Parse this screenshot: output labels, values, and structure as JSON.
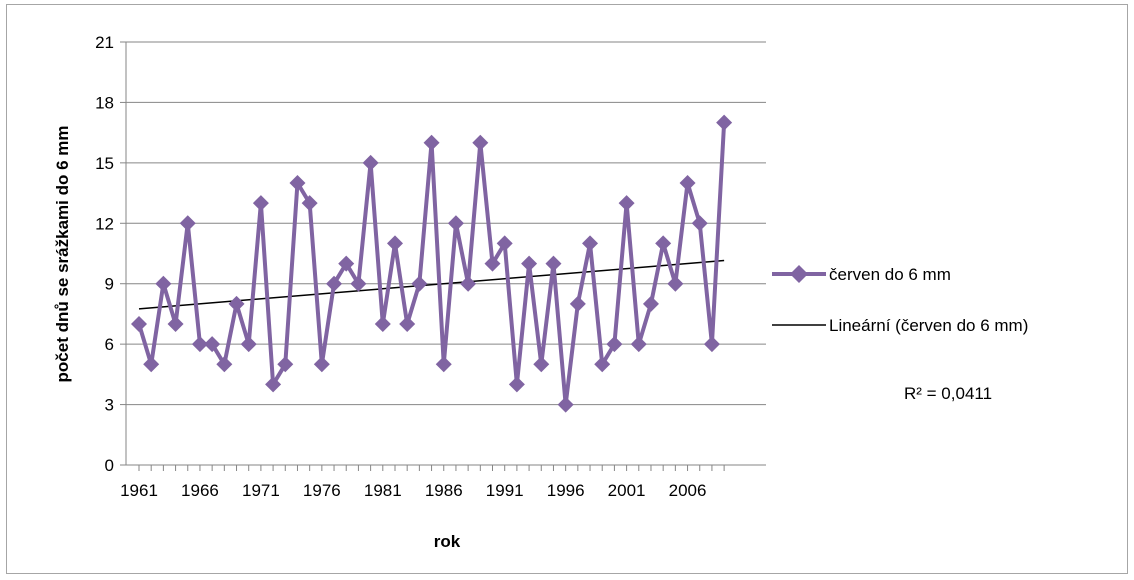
{
  "chart_data": {
    "type": "line",
    "title": "",
    "xlabel": "rok",
    "ylabel": "počet dnů se srážkami do 6 mm",
    "ylim": [
      0,
      21
    ],
    "yticks": [
      "0",
      "3",
      "6",
      "9",
      "12",
      "15",
      "18",
      "21"
    ],
    "xticks": [
      "1961",
      "1966",
      "1971",
      "1976",
      "1981",
      "1986",
      "1991",
      "1996",
      "2001",
      "2006"
    ],
    "grid": "horizontal",
    "legend_position": "right",
    "x": [
      1961,
      1962,
      1963,
      1964,
      1965,
      1966,
      1967,
      1968,
      1969,
      1970,
      1971,
      1972,
      1973,
      1974,
      1975,
      1976,
      1977,
      1978,
      1979,
      1980,
      1981,
      1982,
      1983,
      1984,
      1985,
      1986,
      1987,
      1988,
      1989,
      1990,
      1991,
      1992,
      1993,
      1994,
      1995,
      1996,
      1997,
      1998,
      1999,
      2000,
      2001,
      2002,
      2003,
      2004,
      2005,
      2006,
      2007,
      2008,
      2009
    ],
    "series": [
      {
        "name": "červen do 6 mm",
        "color": "#8064a2",
        "marker": "diamond",
        "values": [
          7,
          5,
          9,
          7,
          12,
          6,
          6,
          5,
          8,
          6,
          13,
          4,
          5,
          14,
          13,
          5,
          9,
          10,
          9,
          15,
          7,
          11,
          7,
          9,
          16,
          5,
          12,
          9,
          16,
          10,
          11,
          4,
          10,
          5,
          10,
          3,
          8,
          11,
          5,
          6,
          13,
          6,
          8,
          11,
          9,
          14,
          12,
          6,
          17
        ]
      }
    ],
    "trendline": {
      "name": "Lineární (červen do 6 mm)",
      "type": "linear",
      "color": "#000000",
      "start": 7.75,
      "end": 10.15
    },
    "annotation": "R² = 0,0411"
  }
}
